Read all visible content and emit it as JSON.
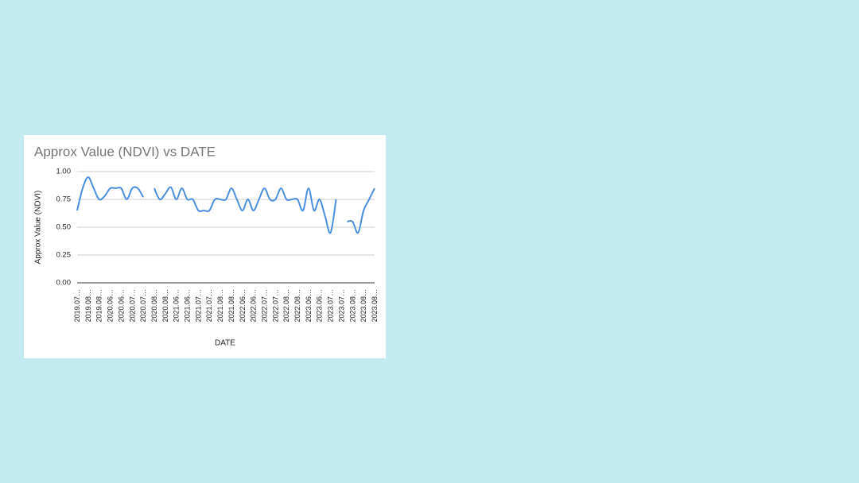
{
  "chart_data": {
    "type": "line",
    "title": "Approx Value (NDVI) vs DATE",
    "x_label": "DATE",
    "y_label": "Approx Value (NDVI)",
    "categories": [
      "2019.07…",
      null,
      "2019.08…",
      null,
      "2019.08…",
      null,
      "2020.06…",
      null,
      "2020.06…",
      null,
      "2020.07…",
      null,
      "2020.07…",
      null,
      "2020.08…",
      null,
      "2020.08…",
      null,
      "2021.06…",
      null,
      "2021.06…",
      null,
      "2021.07…",
      null,
      "2021.07…",
      null,
      "2021.08…",
      null,
      "2021.08…",
      null,
      "2022.06…",
      null,
      "2022.06…",
      null,
      "2022.07…",
      null,
      "2022.07…",
      null,
      "2022.08…",
      null,
      "2022.08…",
      null,
      "2023.06…",
      null,
      "2023.06…",
      null,
      "2023.07…",
      null,
      "2023.07…",
      null,
      "2023.08…",
      null,
      "2023.08…",
      null,
      "2023.08…"
    ],
    "series": [
      {
        "name": "Approx Value (NDVI)",
        "color": "#4a8fde",
        "values": [
          0.65,
          0.85,
          0.95,
          0.85,
          0.75,
          0.78,
          0.85,
          0.85,
          0.85,
          0.75,
          0.85,
          0.85,
          0.77,
          null,
          0.85,
          0.75,
          0.8,
          0.86,
          0.75,
          0.85,
          0.75,
          0.75,
          0.65,
          0.65,
          0.65,
          0.75,
          0.75,
          0.75,
          0.85,
          0.75,
          0.65,
          0.75,
          0.65,
          0.75,
          0.85,
          0.75,
          0.75,
          0.85,
          0.75,
          0.75,
          0.75,
          0.65,
          0.85,
          0.65,
          0.75,
          0.6,
          0.45,
          0.75,
          null,
          0.55,
          0.55,
          0.45,
          0.65,
          0.75,
          0.85
        ]
      }
    ],
    "ylim": [
      0,
      1
    ],
    "yticks": [
      {
        "value": 0,
        "label": "0.00"
      },
      {
        "value": 0.25,
        "label": "0.25"
      },
      {
        "value": 0.5,
        "label": "0.50"
      },
      {
        "value": 0.75,
        "label": "0.75"
      },
      {
        "value": 1,
        "label": "1.00"
      }
    ],
    "grid": true
  }
}
